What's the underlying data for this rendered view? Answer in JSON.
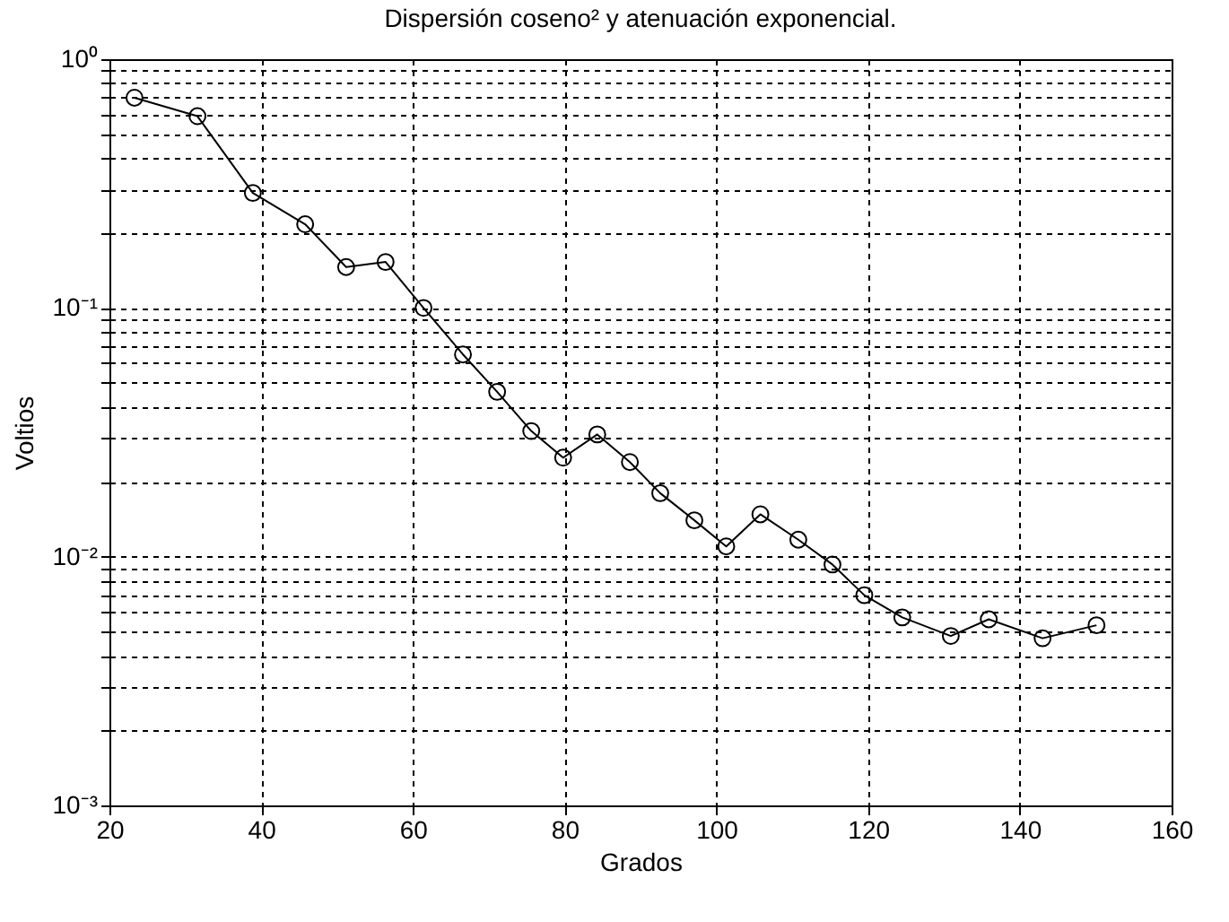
{
  "chart_data": {
    "type": "line",
    "title": "Dispersión coseno² y atenuación exponencial.",
    "xlabel": "Grados",
    "ylabel": "Voltios",
    "log": true,
    "grid": true,
    "marker": "circle",
    "line_style": "solid",
    "xlim": [
      20,
      160
    ],
    "xticks": [
      20,
      40,
      60,
      80,
      100,
      120,
      140,
      160
    ],
    "ylim": [
      0.001,
      1
    ],
    "yticks": [
      {
        "value": 0.001,
        "label": "10⁻³"
      },
      {
        "value": 0.002,
        "label": null
      },
      {
        "value": 0.003,
        "label": null
      },
      {
        "value": 0.004,
        "label": null
      },
      {
        "value": 0.005,
        "label": null
      },
      {
        "value": 0.006,
        "label": null
      },
      {
        "value": 0.007,
        "label": null
      },
      {
        "value": 0.008,
        "label": null
      },
      {
        "value": 0.009,
        "label": null
      },
      {
        "value": 0.01,
        "label": "10⁻²"
      },
      {
        "value": 0.02,
        "label": null
      },
      {
        "value": 0.03,
        "label": null
      },
      {
        "value": 0.04,
        "label": null
      },
      {
        "value": 0.05,
        "label": null
      },
      {
        "value": 0.06,
        "label": null
      },
      {
        "value": 0.07,
        "label": null
      },
      {
        "value": 0.08,
        "label": null
      },
      {
        "value": 0.09,
        "label": null
      },
      {
        "value": 0.1,
        "label": "10⁻¹"
      },
      {
        "value": 0.2,
        "label": null
      },
      {
        "value": 0.3,
        "label": null
      },
      {
        "value": 0.4,
        "label": null
      },
      {
        "value": 0.5,
        "label": null
      },
      {
        "value": 0.6,
        "label": null
      },
      {
        "value": 0.7,
        "label": null
      },
      {
        "value": 0.8,
        "label": null
      },
      {
        "value": 0.9,
        "label": null
      },
      {
        "value": 1,
        "label": "10⁰"
      }
    ],
    "x": [
      23.3,
      31.6,
      38.9,
      45.8,
      51.2,
      56.4,
      61.4,
      66.6,
      71.1,
      75.6,
      79.8,
      84.3,
      88.6,
      92.6,
      97.1,
      101.3,
      105.8,
      110.8,
      115.3,
      119.5,
      124.5,
      130.9,
      135.9,
      143.0,
      150.1
    ],
    "series": [
      {
        "color": "#000000",
        "values": [
          0.7,
          0.59,
          0.29,
          0.217,
          0.146,
          0.153,
          0.1,
          0.065,
          0.046,
          0.032,
          0.025,
          0.031,
          0.024,
          0.018,
          0.014,
          0.011,
          0.0148,
          0.0117,
          0.0093,
          0.007,
          0.0057,
          0.0048,
          0.0056,
          0.0047,
          0.0053
        ]
      }
    ]
  }
}
